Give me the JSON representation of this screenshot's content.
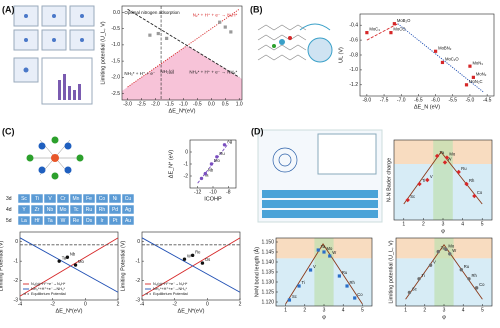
{
  "panel_labels": [
    "(A)",
    "(B)",
    "(C)",
    "(D)"
  ],
  "periodic_table": {
    "rows": [
      {
        "label": "3d",
        "elements": [
          "Sc",
          "Ti",
          "V",
          "Cr",
          "Mn",
          "Fe",
          "Co",
          "Ni",
          "Cu"
        ]
      },
      {
        "label": "4d",
        "elements": [
          "Y",
          "Zr",
          "Nb",
          "Mo",
          "Tc",
          "Ru",
          "Rh",
          "Pd",
          "Ag"
        ]
      },
      {
        "label": "5d",
        "elements": [
          "La",
          "Hf",
          "Ta",
          "W",
          "Re",
          "Os",
          "Ir",
          "Pt",
          "Au"
        ]
      }
    ]
  },
  "chart_data": [
    {
      "type": "scatter",
      "x_label": "ΔE_N*(eV)",
      "y_label": "Limiting potential (U_L, V)",
      "xlim": [
        -3.2,
        1.1
      ],
      "ylim": [
        -2.7,
        0.2
      ],
      "xticks": [
        {
          "value": -3,
          "label": "-3.0"
        },
        -2.5,
        {
          "value": -2,
          "label": "-2.0"
        },
        -1.5,
        {
          "value": -1,
          "label": "-1.0"
        },
        -0.5,
        {
          "value": 0,
          "label": "0.0"
        },
        0.5,
        {
          "value": 1,
          "label": "1.0"
        }
      ],
      "yticks": [
        {
          "value": 0,
          "label": "0.0"
        },
        -0.5,
        {
          "value": -1,
          "label": "-1.0"
        },
        -1.5,
        {
          "value": -2,
          "label": "-2.0"
        },
        -2.5
      ],
      "vlines": [
        -1.8
      ],
      "region_color": "#f3a9c8",
      "annotations": [
        "Optimal nitrogen adsorption",
        "NH₃* + H⁺ + e⁻",
        "NH₂(g)"
      ],
      "series": [
        {
          "name": "N₂* + H⁺ + e⁻ → N₂H*",
          "type": "line",
          "color": "#d62728",
          "dash": "dotted",
          "x": [
            -3.0,
            1.0
          ],
          "values": [
            -2.3,
            0.1
          ]
        },
        {
          "name": "NH₂* + H⁺ + e⁻ → NH₃*",
          "type": "line",
          "color": "#222222",
          "dash": "dashed",
          "x": [
            -3.0,
            1.0
          ],
          "values": [
            0.1,
            -2.0
          ]
        },
        {
          "type": "scatter",
          "marker": "square",
          "color": "#9a9a9a",
          "x": [
            -2.2,
            -1.9,
            -1.6,
            0.3,
            0.5,
            0.7
          ],
          "values": [
            -0.7,
            -0.65,
            -0.8,
            -0.3,
            -0.45,
            -0.6
          ]
        }
      ]
    },
    {
      "type": "scatter",
      "x_label": "ΔE_N (eV)",
      "y_label": "UL (V)",
      "xlim": [
        -8.2,
        -4.3
      ],
      "ylim": [
        -1.35,
        -0.25
      ],
      "xticks": [
        {
          "value": -8,
          "label": "-8.0"
        },
        -7.5,
        {
          "value": -7,
          "label": "-7.0"
        },
        -6.5,
        {
          "value": -6,
          "label": "-6.0"
        },
        -5.5,
        {
          "value": -5,
          "label": "-5.0"
        },
        -4.5
      ],
      "yticks": [
        -0.4,
        -0.6,
        -0.8,
        {
          "value": -1,
          "label": "-1.0"
        },
        -1.2
      ],
      "series": [
        {
          "type": "line",
          "color": "#d62728",
          "dash": "dashed",
          "x": [
            -8.0,
            -7.1
          ],
          "values": [
            -0.6,
            -0.38
          ]
        },
        {
          "type": "line",
          "color": "#1f4fb4",
          "dash": "dotted",
          "x": [
            -7.1,
            -4.6
          ],
          "values": [
            -0.38,
            -1.3
          ]
        },
        {
          "type": "scatter",
          "marker": "square",
          "color": "#d62728",
          "x": [
            -8.0,
            -7.2,
            -7.3,
            -6.0,
            -5.8,
            -5.0,
            -4.9,
            -5.1
          ],
          "values": [
            -0.5,
            -0.38,
            -0.5,
            -0.75,
            -0.9,
            -0.95,
            -1.1,
            -1.2
          ],
          "point_labels": [
            "MoC₃",
            "MoB₂O",
            "MoCO",
            "MoBN₂",
            "MoC₂O",
            "MoN₃",
            "MoN₂",
            "MoN₂C"
          ]
        }
      ]
    },
    {
      "type": "scatter",
      "x_label": "ICOHP",
      "y_label": "ΔE_N* (eV)",
      "xlim": [
        -13,
        -7
      ],
      "ylim": [
        -3,
        1
      ],
      "xticks": [
        -12,
        -10,
        -8
      ],
      "yticks": [
        -2,
        -1,
        0
      ],
      "series": [
        {
          "type": "line",
          "color": "#7b4fc0",
          "dash": "dashed",
          "x": [
            -12,
            -8
          ],
          "values": [
            -2.6,
            0.7
          ]
        },
        {
          "type": "scatter",
          "marker": "circle",
          "color": "#7b4fc0",
          "x": [
            -11.5,
            -11,
            -10.2,
            -9.5,
            -8.5
          ],
          "values": [
            -2.2,
            -1.8,
            -1.0,
            -0.4,
            0.6
          ],
          "point_labels": [
            "Ta",
            "Nb",
            "Mo",
            "Ru",
            "Ag"
          ]
        }
      ]
    },
    {
      "type": "scatter",
      "x_label": "ΔE_N*(eV)",
      "y_label": "Limiting Potential (V)",
      "xlim": [
        -4,
        2
      ],
      "ylim": [
        -3,
        0.5
      ],
      "xticks": [
        -4,
        -2,
        0,
        2
      ],
      "yticks": [
        -3,
        -2,
        -1,
        0
      ],
      "legend": "lower left",
      "series": [
        {
          "name": "N₂(g)+H⁺+e⁻→N₂H*",
          "type": "line",
          "color": "#d62728",
          "dash": "solid",
          "x": [
            -4,
            2
          ],
          "values": [
            -2.8,
            0.2
          ]
        },
        {
          "name": "NH₂*+H⁺+e⁻→NH₃*",
          "type": "line",
          "color": "#1f4fb4",
          "dash": "solid",
          "x": [
            -4,
            2
          ],
          "values": [
            0.2,
            -2.6
          ]
        },
        {
          "name": "Equilibrium Potential",
          "type": "line",
          "color": "#555555",
          "dash": "dashed",
          "x": [
            -4,
            2
          ],
          "values": [
            -0.16,
            -0.16
          ]
        },
        {
          "type": "scatter",
          "marker": "circle",
          "color": "#111111",
          "x": [
            -1.6,
            -1.1,
            -0.6
          ],
          "values": [
            -1.0,
            -0.8,
            -1.2
          ],
          "point_labels": [
            "Ta",
            "Nb",
            "Mo"
          ]
        }
      ]
    },
    {
      "type": "scatter",
      "x_label": "ΔE_N*(eV)",
      "y_label": "Limiting Potential (V)",
      "xlim": [
        -4,
        2
      ],
      "ylim": [
        -3,
        0.5
      ],
      "xticks": [
        -4,
        -2,
        0,
        2
      ],
      "yticks": [
        -3,
        -2,
        -1,
        0
      ],
      "legend": "lower left",
      "series": [
        {
          "name": "N₂(g)+H⁺+e⁻→N₂H*",
          "type": "line",
          "color": "#d62728",
          "dash": "solid",
          "x": [
            -4,
            2
          ],
          "values": [
            -2.8,
            0.2
          ]
        },
        {
          "name": "NH₂*+H⁺+e⁻→NH₃*",
          "type": "line",
          "color": "#1f4fb4",
          "dash": "solid",
          "x": [
            -4,
            2
          ],
          "values": [
            0.2,
            -2.6
          ]
        },
        {
          "name": "Equilibrium Potential",
          "type": "line",
          "color": "#555555",
          "dash": "dashed",
          "x": [
            -4,
            2
          ],
          "values": [
            -0.16,
            -0.16
          ]
        },
        {
          "type": "scatter",
          "marker": "circle",
          "color": "#111111",
          "x": [
            -1.4,
            -0.9,
            -0.3
          ],
          "values": [
            -0.9,
            -0.7,
            -1.1
          ],
          "point_labels": [
            "W",
            "Re",
            "Os"
          ]
        }
      ]
    },
    {
      "type": "scatter",
      "x_label": "φ",
      "y_label": "N-N Bader charge",
      "xlim": [
        0.5,
        5.5
      ],
      "ylim": [
        0,
        1
      ],
      "xticks": [
        1,
        2,
        3,
        4,
        5
      ],
      "bands": true,
      "series": [
        {
          "type": "line",
          "color": "#8b3a1a",
          "dash": "solid",
          "x": [
            1,
            2.9,
            5
          ],
          "values": [
            0.2,
            0.85,
            0.2
          ]
        },
        {
          "type": "scatter",
          "marker": "diamond",
          "color": "#d62728",
          "x": [
            1.2,
            1.8,
            2.2,
            2.7,
            3.1,
            3.2,
            3.8,
            4.2,
            4.6
          ],
          "values": [
            0.25,
            0.45,
            0.5,
            0.8,
            0.72,
            0.78,
            0.6,
            0.45,
            0.3
          ],
          "point_labels": [
            "Sc",
            "Ti",
            "V",
            "Ta",
            "W",
            "Mo",
            "Ru",
            "Rh",
            "Co"
          ]
        }
      ]
    },
    {
      "type": "scatter",
      "x_label": "φ",
      "y_label": "N≡N bond length (Å)",
      "xlim": [
        0.5,
        5.5
      ],
      "ylim": [
        1.118,
        1.152
      ],
      "xticks": [
        1,
        2,
        3,
        4,
        5
      ],
      "bands": true,
      "yticks": [
        {
          "value": 1.12,
          "label": "1.120"
        },
        1.125,
        {
          "value": 1.13,
          "label": "1.130"
        },
        1.135,
        {
          "value": 1.14,
          "label": "1.140"
        },
        1.145,
        {
          "value": 1.15,
          "label": "1.150"
        }
      ],
      "series": [
        {
          "type": "line",
          "color": "#8b3a1a",
          "dash": "solid",
          "x": [
            1,
            2.95,
            5
          ],
          "values": [
            1.119,
            1.149,
            1.119
          ]
        },
        {
          "type": "scatter",
          "marker": "square",
          "color": "#2a6fc9",
          "x": [
            1.2,
            1.7,
            2.3,
            2.7,
            3.0,
            3.3,
            3.8,
            4.2,
            4.6
          ],
          "values": [
            1.121,
            1.128,
            1.136,
            1.146,
            1.145,
            1.143,
            1.133,
            1.128,
            1.122
          ],
          "point_labels": [
            "Sc",
            "Ti",
            "V",
            "Ta",
            "Mo",
            "W",
            "Ru",
            "Rh",
            "Co"
          ]
        }
      ]
    },
    {
      "type": "scatter",
      "x_label": "φ",
      "y_label": "Limiting potential (U_L, V)",
      "xlim": [
        0.5,
        5.5
      ],
      "ylim": [
        -1.5,
        0
      ],
      "xticks": [
        1,
        2,
        3,
        4,
        5
      ],
      "bands": true,
      "series": [
        {
          "type": "line",
          "color": "#8b3a1a",
          "dash": "solid",
          "x": [
            1,
            3,
            5
          ],
          "values": [
            -1.35,
            -0.15,
            -1.35
          ]
        },
        {
          "type": "scatter",
          "marker": "circle",
          "color": "#707070",
          "x": [
            1.2,
            1.7,
            2.3,
            2.7,
            3.1,
            3.3,
            3.9,
            4.3,
            4.7
          ],
          "values": [
            -1.2,
            -0.9,
            -0.6,
            -0.3,
            -0.25,
            -0.35,
            -0.7,
            -0.9,
            -1.1
          ],
          "point_labels": [
            "Sc",
            "Ti",
            "V",
            "Ta",
            "Mo",
            "W",
            "Ru",
            "Rh",
            "Co"
          ]
        }
      ]
    }
  ]
}
